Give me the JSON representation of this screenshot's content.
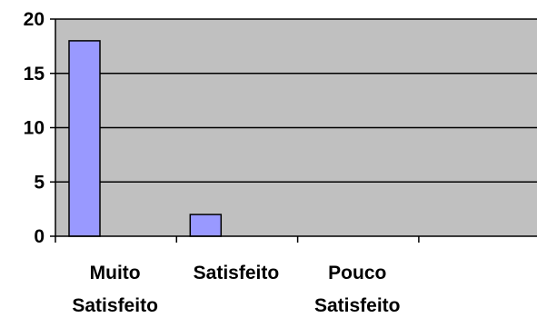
{
  "chart_data": {
    "type": "bar",
    "title": "",
    "xlabel": "",
    "ylabel": "",
    "categories": [
      [
        "Muito",
        "Satisfeito"
      ],
      [
        "Satisfeito"
      ],
      [
        "Pouco",
        "Satisfeito"
      ],
      []
    ],
    "values": [
      18,
      2,
      0,
      0
    ],
    "ylim": [
      0,
      20
    ],
    "yticks": [
      "0",
      "5",
      "10",
      "15",
      "20"
    ],
    "grid": true,
    "legend": "none",
    "colors": {
      "plot_background": "#c0c0c0",
      "bar_fill": "#9999ff",
      "bar_stroke": "#000000",
      "gridline": "#000000",
      "axis": "#000000"
    }
  }
}
